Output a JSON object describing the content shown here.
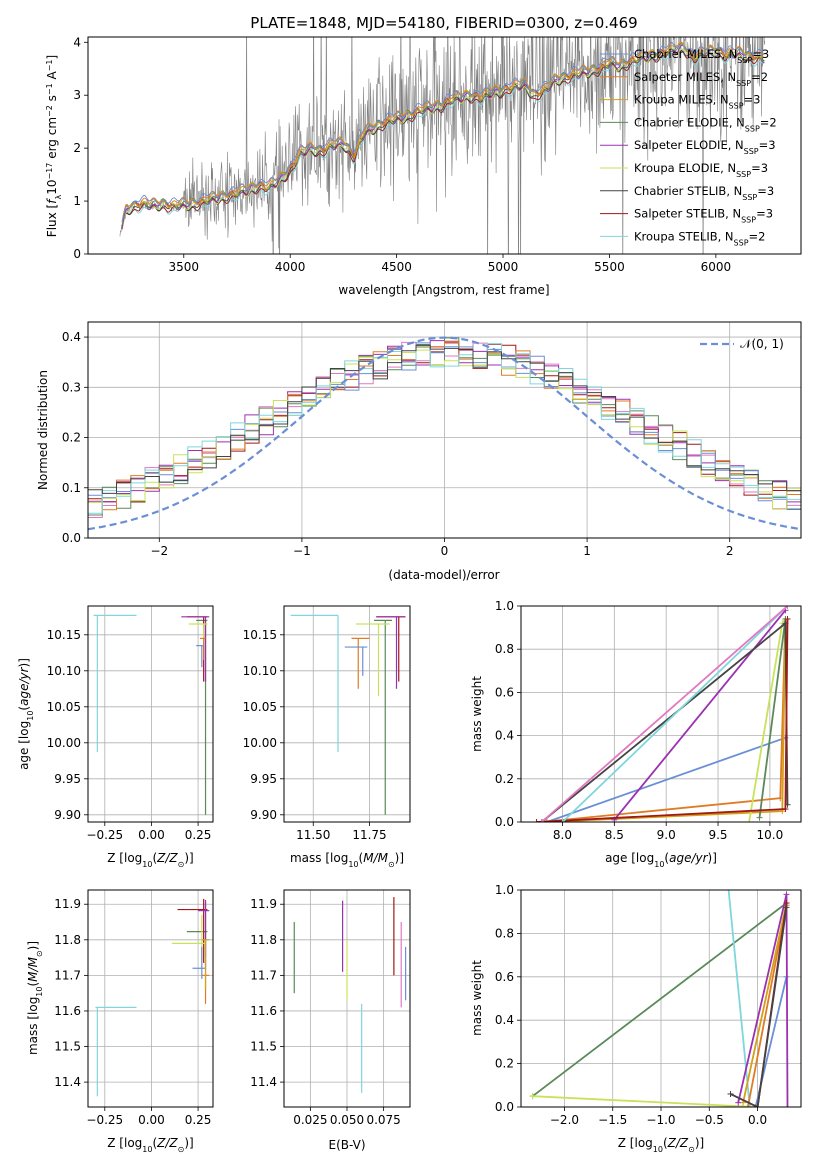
{
  "title": "PLATE=1848, MJD=54180, FIBERID=0300, z=0.469",
  "colors": {
    "Chabrier MILES": "#6a8fd6",
    "Salpeter MILES": "#e07b26",
    "Kroupa MILES": "#d4a017",
    "Chabrier ELODIE": "#5a8a5a",
    "Salpeter ELODIE": "#9b30b0",
    "Kroupa ELODIE": "#c8e35a",
    "Chabrier STELIB": "#444444",
    "Salpeter STELIB": "#a01818",
    "Kroupa STELIB": "#7fd6dc",
    "data": "#7f7f7f",
    "normal": "#6a8fd6",
    "pink": "#e377c2"
  },
  "chart_data": [
    {
      "id": "spectrum",
      "type": "line",
      "xlabel": "wavelength [Angstrom, rest frame]",
      "ylabel": "Flux [f_λ 10^-17 erg cm^-2 s^-1 A^-1]",
      "xlim": [
        3050,
        6400
      ],
      "ylim": [
        0,
        4.1
      ],
      "xticks": [
        "3500",
        "4000",
        "4500",
        "5000",
        "5500",
        "6000"
      ],
      "yticks": [
        "0",
        "1",
        "2",
        "3",
        "4"
      ],
      "grid": false,
      "legend_position": "top-right",
      "legend": [
        {
          "label": "Chabrier MILES, N_SSP=3",
          "color": "#6a8fd6"
        },
        {
          "label": "Salpeter MILES, N_SSP=2",
          "color": "#e07b26"
        },
        {
          "label": "Kroupa MILES, N_SSP=3",
          "color": "#d4a017"
        },
        {
          "label": "Chabrier ELODIE, N_SSP=2",
          "color": "#5a8a5a"
        },
        {
          "label": "Salpeter ELODIE, N_SSP=3",
          "color": "#9b30b0"
        },
        {
          "label": "Kroupa ELODIE, N_SSP=3",
          "color": "#c8e35a"
        },
        {
          "label": "Chabrier STELIB, N_SSP=3",
          "color": "#444444"
        },
        {
          "label": "Salpeter STELIB, N_SSP=3",
          "color": "#a01818"
        },
        {
          "label": "Kroupa STELIB, N_SSP=2",
          "color": "#7fd6dc"
        }
      ],
      "model_continuum": {
        "x": [
          3200,
          3230,
          3260,
          3300,
          3350,
          3400,
          3450,
          3500,
          3550,
          3600,
          3650,
          3700,
          3750,
          3800,
          3850,
          3900,
          3950,
          4000,
          4050,
          4100,
          4150,
          4200,
          4250,
          4300,
          4350,
          4400,
          4450,
          4500,
          4550,
          4600,
          4650,
          4700,
          4750,
          4800,
          4850,
          4900,
          4950,
          5000,
          5050,
          5100,
          5150,
          5200,
          5250,
          5300,
          5350,
          5400,
          5450,
          5500,
          5550,
          5600,
          5650,
          5700,
          5750,
          5800,
          5850,
          5900,
          5950,
          6000,
          6050,
          6100,
          6150,
          6200
        ],
        "y": [
          0.35,
          0.85,
          0.9,
          0.95,
          0.92,
          0.95,
          0.9,
          0.93,
          0.95,
          1.0,
          1.05,
          1.1,
          1.15,
          1.2,
          1.3,
          1.25,
          1.4,
          1.6,
          1.9,
          2.0,
          1.95,
          2.05,
          2.1,
          1.85,
          2.3,
          2.4,
          2.5,
          2.55,
          2.6,
          2.7,
          2.75,
          2.8,
          2.9,
          2.95,
          3.0,
          2.95,
          3.05,
          3.1,
          3.15,
          3.2,
          3.0,
          3.1,
          3.3,
          3.35,
          3.4,
          3.45,
          3.5,
          3.6,
          3.55,
          3.65,
          3.7,
          3.75,
          3.8,
          3.85,
          3.9,
          3.7,
          3.8,
          3.85,
          3.75,
          3.8,
          3.75,
          3.7
        ]
      }
    },
    {
      "id": "residuals",
      "type": "bar",
      "xlabel": "(data-model)/error",
      "ylabel": "Normed distribution",
      "xlim": [
        -2.5,
        2.5
      ],
      "ylim": [
        0,
        0.43
      ],
      "xticks": [
        "−2",
        "−1",
        "0",
        "1",
        "2"
      ],
      "yticks": [
        "0.0",
        "0.1",
        "0.2",
        "0.3",
        "0.4"
      ],
      "grid": true,
      "legend_label": "𝒩(0, 1)",
      "normal_mean": 0,
      "normal_sigma": 1
    },
    {
      "id": "age-vs-Z",
      "type": "scatter",
      "xlabel": "Z [log10(Z/Z⊙)]",
      "ylabel": "age  [log10(age/yr)]",
      "xlim": [
        -0.34,
        0.33
      ],
      "ylim": [
        9.89,
        10.19
      ],
      "xticks": [
        "−0.25",
        "0.00",
        "0.25"
      ],
      "yticks": [
        "9.90",
        "9.95",
        "10.00",
        "10.05",
        "10.10",
        "10.15"
      ],
      "grid": true,
      "points": [
        {
          "model": "Kroupa STELIB",
          "x": -0.29,
          "y": 10.177,
          "xerr": [
            0.02,
            0.21
          ],
          "yerr": [
            0.19,
            0.0
          ]
        },
        {
          "model": "Chabrier ELODIE",
          "x": 0.29,
          "y": 10.17,
          "xerr": [
            0.05,
            0.01
          ],
          "yerr": [
            0.27,
            0.0
          ]
        },
        {
          "model": "Salpeter STELIB",
          "x": 0.28,
          "y": 10.175,
          "xerr": [
            0.09,
            0.02
          ],
          "yerr": [
            0.09,
            0.0
          ]
        },
        {
          "model": "Salpeter ELODIE",
          "x": 0.29,
          "y": 10.175,
          "xerr": [
            0.13,
            0.02
          ],
          "yerr": [
            0.09,
            0.0
          ]
        },
        {
          "model": "Kroupa ELODIE",
          "x": 0.28,
          "y": 10.165,
          "xerr": [
            0.08,
            0.02
          ],
          "yerr": [
            0.03,
            0.0
          ]
        },
        {
          "model": "Salpeter MILES",
          "x": 0.28,
          "y": 10.145,
          "xerr": [
            0.02,
            0.01
          ],
          "yerr": [
            0.03,
            0.0
          ]
        },
        {
          "model": "Chabrier MILES",
          "x": 0.27,
          "y": 10.135,
          "xerr": [
            0.03,
            0.01
          ],
          "yerr": [
            0.03,
            0.0
          ]
        }
      ]
    },
    {
      "id": "age-vs-mass",
      "type": "scatter",
      "xlabel": "mass [log10(M/M⊙)]",
      "ylabel": "",
      "xlim": [
        11.37,
        11.93
      ],
      "ylim": [
        9.89,
        10.19
      ],
      "xticks": [
        "11.50",
        "11.75"
      ],
      "yticks": [
        "9.90",
        "9.95",
        "10.00",
        "10.05",
        "10.10",
        "10.15"
      ],
      "grid": true,
      "points": [
        {
          "model": "Kroupa STELIB",
          "x": 11.61,
          "y": 10.177,
          "xerr": [
            0.21,
            0.0
          ],
          "yerr": [
            0.19,
            0.0
          ]
        },
        {
          "model": "Chabrier ELODIE",
          "x": 11.82,
          "y": 10.17,
          "xerr": [
            0.05,
            0.03
          ],
          "yerr": [
            0.27,
            0.0
          ]
        },
        {
          "model": "Salpeter STELIB",
          "x": 11.88,
          "y": 10.175,
          "xerr": [
            0.1,
            0.03
          ],
          "yerr": [
            0.09,
            0.0
          ]
        },
        {
          "model": "Salpeter ELODIE",
          "x": 11.87,
          "y": 10.175,
          "xerr": [
            0.09,
            0.04
          ],
          "yerr": [
            0.1,
            0.0
          ]
        },
        {
          "model": "Kroupa ELODIE",
          "x": 11.79,
          "y": 10.165,
          "xerr": [
            0.1,
            0.05
          ],
          "yerr": [
            0.1,
            0.0
          ]
        },
        {
          "model": "Salpeter MILES",
          "x": 11.7,
          "y": 10.145,
          "xerr": [
            0.03,
            0.05
          ],
          "yerr": [
            0.07,
            0.0
          ]
        },
        {
          "model": "Chabrier MILES",
          "x": 11.72,
          "y": 10.133,
          "xerr": [
            0.08,
            0.02
          ],
          "yerr": [
            0.04,
            0.0
          ]
        }
      ]
    },
    {
      "id": "weight-vs-age",
      "type": "line",
      "xlabel": "age  [log10(age/yr)]",
      "ylabel": "mass weight",
      "xlim": [
        7.6,
        10.3
      ],
      "ylim": [
        0,
        1.0
      ],
      "xticks": [
        "8.0",
        "8.5",
        "9.0",
        "9.5",
        "10.0"
      ],
      "yticks": [
        "0.0",
        "0.2",
        "0.4",
        "0.6",
        "0.8",
        "1.0"
      ],
      "grid": true,
      "series": [
        {
          "model": "Chabrier MILES",
          "x": [
            7.85,
            10.15
          ],
          "y": [
            0.0,
            0.39
          ]
        },
        {
          "model": "Salpeter MILES",
          "x": [
            7.8,
            10.1,
            10.15
          ],
          "y": [
            0.0,
            0.11,
            0.94
          ]
        },
        {
          "model": "Kroupa MILES",
          "x": [
            7.85,
            10.12,
            10.15
          ],
          "y": [
            0.0,
            0.05,
            0.93
          ]
        },
        {
          "model": "Chabrier ELODIE",
          "x": [
            9.9,
            10.15
          ],
          "y": [
            0.02,
            0.94
          ]
        },
        {
          "model": "Salpeter ELODIE",
          "x": [
            8.5,
            10.15
          ],
          "y": [
            0.01,
            0.98
          ]
        },
        {
          "model": "Kroupa ELODIE",
          "x": [
            9.8,
            10.12
          ],
          "y": [
            0.0,
            0.92
          ]
        },
        {
          "model": "Chabrier STELIB",
          "x": [
            7.8,
            10.15,
            10.17
          ],
          "y": [
            0.0,
            0.92,
            0.08
          ]
        },
        {
          "model": "Salpeter STELIB",
          "x": [
            7.75,
            10.15,
            10.17
          ],
          "y": [
            0.0,
            0.06,
            0.94
          ]
        },
        {
          "model": "Kroupa STELIB",
          "x": [
            8.0,
            10.17
          ],
          "y": [
            0.0,
            1.0
          ]
        },
        {
          "model": "pink",
          "x": [
            7.8,
            10.17
          ],
          "y": [
            0.0,
            1.0
          ]
        }
      ]
    },
    {
      "id": "mass-vs-Z",
      "type": "scatter",
      "xlabel": "Z [log10(Z/Z⊙)]",
      "ylabel": "mass [log10(M/M⊙)]",
      "xlim": [
        -0.34,
        0.33
      ],
      "ylim": [
        11.33,
        11.94
      ],
      "xticks": [
        "−0.25",
        "0.00",
        "0.25"
      ],
      "yticks": [
        "11.4",
        "11.5",
        "11.6",
        "11.7",
        "11.8",
        "11.9"
      ],
      "grid": true,
      "points": [
        {
          "model": "Kroupa STELIB",
          "x": -0.29,
          "y": 11.61,
          "xerr": [
            0.01,
            0.21
          ],
          "yerr": [
            0.25,
            0.0
          ]
        },
        {
          "model": "Chabrier ELODIE",
          "x": 0.29,
          "y": 11.823,
          "xerr": [
            0.1,
            0.01
          ],
          "yerr": [
            0.1,
            0.08
          ]
        },
        {
          "model": "Salpeter STELIB",
          "x": 0.28,
          "y": 11.885,
          "xerr": [
            0.14,
            0.02
          ],
          "yerr": [
            0.15,
            0.03
          ]
        },
        {
          "model": "Salpeter ELODIE",
          "x": 0.29,
          "y": 11.882,
          "xerr": [
            0.04,
            0.02
          ],
          "yerr": [
            0.13,
            0.03
          ]
        },
        {
          "model": "Kroupa ELODIE",
          "x": 0.27,
          "y": 11.79,
          "xerr": [
            0.16,
            0.02
          ],
          "yerr": [
            0.05,
            0.08
          ]
        },
        {
          "model": "Salpeter MILES",
          "x": 0.29,
          "y": 11.7,
          "xerr": [
            0.02,
            0.02
          ],
          "yerr": [
            0.08,
            0.04
          ]
        },
        {
          "model": "Chabrier MILES",
          "x": 0.27,
          "y": 11.72,
          "xerr": [
            0.05,
            0.02
          ],
          "yerr": [
            0.03,
            0.06
          ]
        },
        {
          "model": "Kroupa MILES",
          "x": 0.29,
          "y": 11.8,
          "xerr": [
            0.02,
            0.02
          ],
          "yerr": [
            0.14,
            0.0
          ]
        }
      ]
    },
    {
      "id": "mass-vs-EBV",
      "type": "scatter",
      "xlabel": "E(B-V)",
      "ylabel": "",
      "xlim": [
        0.007,
        0.093
      ],
      "ylim": [
        11.33,
        11.94
      ],
      "xticks": [
        "0.025",
        "0.050",
        "0.075"
      ],
      "yticks": [
        "11.4",
        "11.5",
        "11.6",
        "11.7",
        "11.8",
        "11.9"
      ],
      "grid": true,
      "points": [
        {
          "model": "Chabrier ELODIE",
          "x": 0.014,
          "y": 11.75,
          "yerr": [
            0.1,
            0.1
          ]
        },
        {
          "model": "Salpeter ELODIE",
          "x": 0.047,
          "y": 11.81,
          "yerr": [
            0.1,
            0.1
          ]
        },
        {
          "model": "Kroupa ELODIE",
          "x": 0.05,
          "y": 11.72,
          "yerr": [
            0.09,
            0.08
          ]
        },
        {
          "model": "Kroupa STELIB",
          "x": 0.06,
          "y": 11.49,
          "yerr": [
            0.12,
            0.13
          ]
        },
        {
          "model": "Salpeter STELIB",
          "x": 0.082,
          "y": 11.8,
          "yerr": [
            0.1,
            0.12
          ]
        },
        {
          "model": "pink",
          "x": 0.087,
          "y": 11.73,
          "yerr": [
            0.12,
            0.12
          ]
        },
        {
          "model": "Chabrier MILES",
          "x": 0.09,
          "y": 11.7,
          "yerr": [
            0.07,
            0.08
          ]
        }
      ]
    },
    {
      "id": "weight-vs-Z",
      "type": "line",
      "xlabel": "Z [log10(Z/Z⊙)]",
      "ylabel": "mass weight",
      "xlim": [
        -2.45,
        0.45
      ],
      "ylim": [
        0,
        1.0
      ],
      "xticks": [
        "−2.0",
        "−1.5",
        "−1.0",
        "−0.5",
        "0.0"
      ],
      "yticks": [
        "0.0",
        "0.2",
        "0.4",
        "0.6",
        "0.8",
        "1.0"
      ],
      "grid": true,
      "series": [
        {
          "model": "Chabrier ELODIE",
          "x": [
            -2.33,
            0.3
          ],
          "y": [
            0.05,
            0.94
          ]
        },
        {
          "model": "Kroupa ELODIE",
          "x": [
            -2.33,
            -0.02
          ],
          "y": [
            0.05,
            0.0
          ]
        },
        {
          "model": "Kroupa STELIB",
          "x": [
            -0.3,
            -0.08
          ],
          "y": [
            1.0,
            0.0
          ]
        },
        {
          "model": "Chabrier MILES",
          "x": [
            -0.02,
            0.3
          ],
          "y": [
            0.0,
            0.6
          ]
        },
        {
          "model": "Salpeter MILES",
          "x": [
            -0.1,
            0.3
          ],
          "y": [
            0.0,
            0.93
          ]
        },
        {
          "model": "Kroupa MILES",
          "x": [
            -0.15,
            0.3
          ],
          "y": [
            0.02,
            0.94
          ]
        },
        {
          "model": "Salpeter ELODIE",
          "x": [
            -0.2,
            0.3,
            0.31
          ],
          "y": [
            0.02,
            0.98,
            0.0
          ]
        },
        {
          "model": "Salpeter STELIB",
          "x": [
            -0.28,
            0.0,
            0.3
          ],
          "y": [
            0.06,
            0.0,
            0.94
          ]
        },
        {
          "model": "Chabrier STELIB",
          "x": [
            -0.28,
            0.0,
            0.3
          ],
          "y": [
            0.06,
            0.0,
            0.92
          ]
        }
      ]
    }
  ]
}
